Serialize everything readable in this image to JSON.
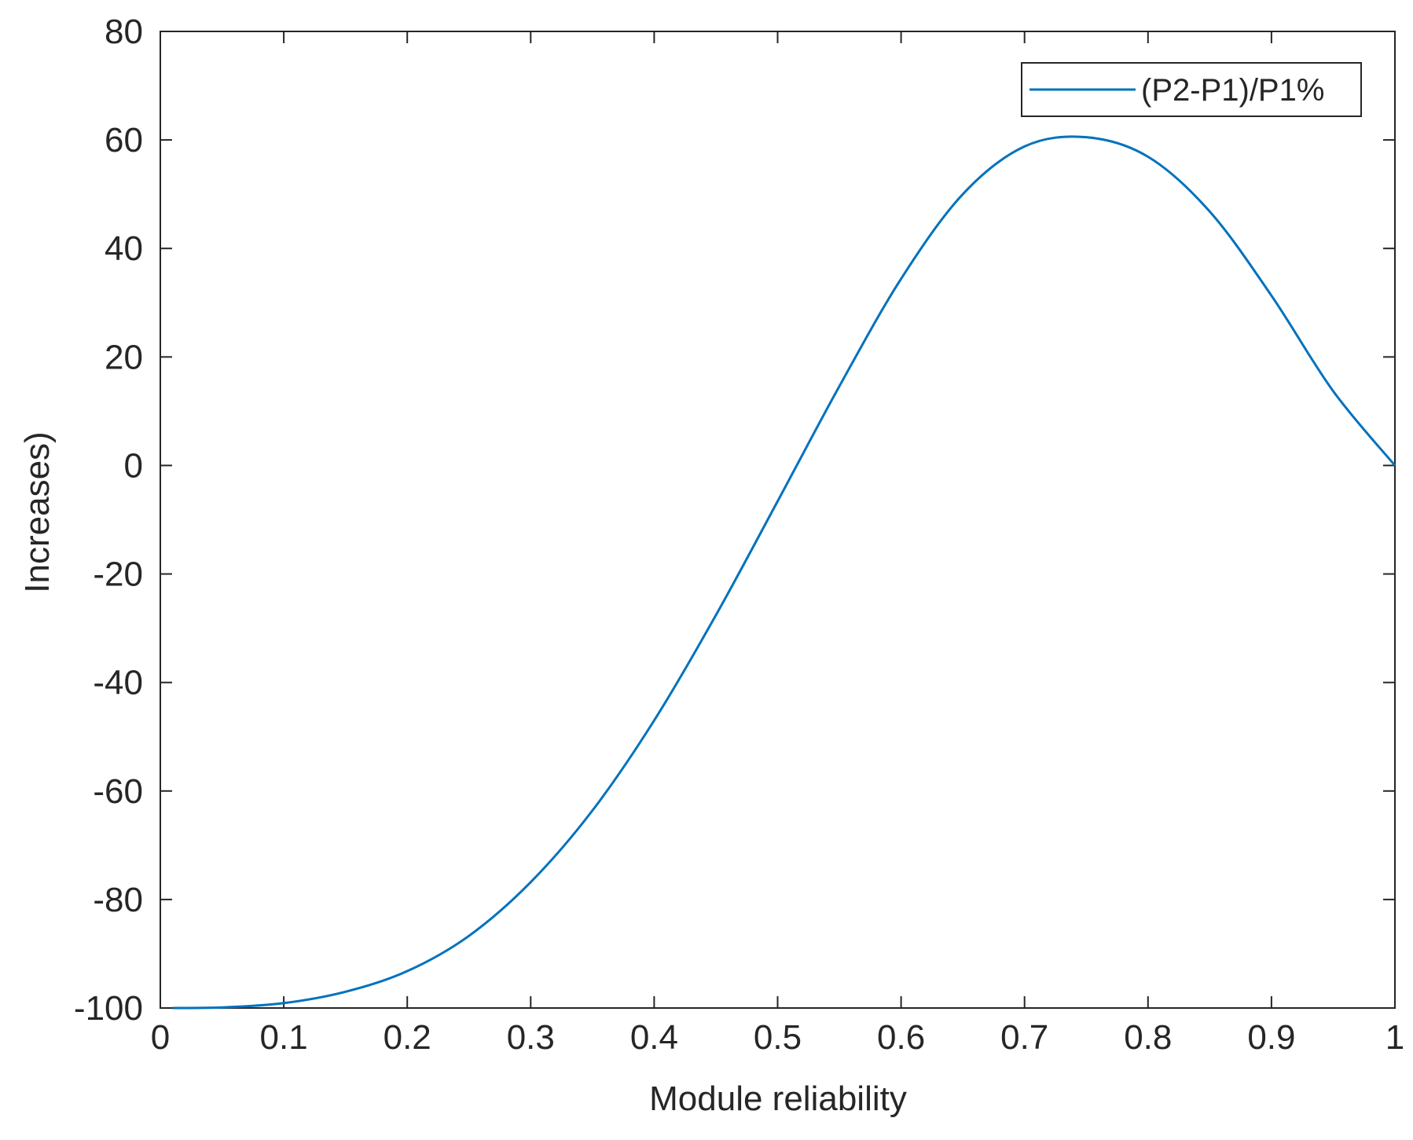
{
  "chart_data": {
    "type": "line",
    "xlabel": "Module reliability",
    "ylabel": "Increases)",
    "xlim": [
      0,
      1
    ],
    "ylim": [
      -100,
      80
    ],
    "xticks": [
      0,
      0.1,
      0.2,
      0.3,
      0.4,
      0.5,
      0.6,
      0.7,
      0.8,
      0.9,
      1
    ],
    "xtick_labels": [
      "0",
      "0.1",
      "0.2",
      "0.3",
      "0.4",
      "0.5",
      "0.6",
      "0.7",
      "0.8",
      "0.9",
      "1"
    ],
    "yticks": [
      80,
      60,
      40,
      20,
      0,
      -20,
      -40,
      -60,
      -80,
      -100
    ],
    "ytick_labels": [
      "80",
      "60",
      "40",
      "20",
      "0",
      "-20",
      "-40",
      "-60",
      "-80",
      "-100"
    ],
    "grid": false,
    "legend_position": "top-right",
    "series_color": "#0072BD",
    "series": [
      {
        "name": "(P2-P1)/P1%",
        "x": [
          0.01,
          0.05,
          0.1,
          0.15,
          0.2,
          0.25,
          0.3,
          0.35,
          0.4,
          0.45,
          0.5,
          0.55,
          0.6,
          0.65,
          0.7,
          0.75,
          0.8,
          0.85,
          0.9,
          0.95,
          1.0
        ],
        "y": [
          -100,
          -99.9,
          -99.1,
          -97.0,
          -93.2,
          -86.7,
          -76.8,
          -63.6,
          -47.0,
          -27.6,
          -6.6,
          14.6,
          34.4,
          50.0,
          58.8,
          60.5,
          56.9,
          46.8,
          31.3,
          13.7,
          0
        ]
      }
    ]
  }
}
